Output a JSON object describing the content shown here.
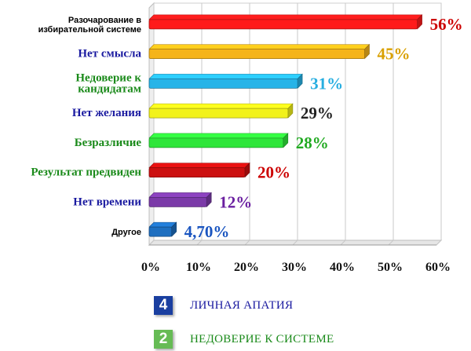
{
  "chart_data": {
    "type": "bar",
    "orientation": "horizontal",
    "categories": [
      "Разочарование в избирательной системе",
      "Нет смысла",
      "Недоверие к кандидатам",
      "Нет желания",
      "Безразличие",
      "Результат предвиден",
      "Нет времени",
      "Другое"
    ],
    "category_lines": [
      [
        "Разочарование в",
        "избирательной системе"
      ],
      [
        "Нет смысла"
      ],
      [
        "Недоверие к",
        "кандидатам"
      ],
      [
        "Нет желания"
      ],
      [
        "Безразличие"
      ],
      [
        "Результат предвиден"
      ],
      [
        "Нет времени"
      ],
      [
        "Другое"
      ]
    ],
    "values": [
      56,
      45,
      31,
      29,
      28,
      20,
      12,
      4.7
    ],
    "value_labels": [
      "56%",
      "45%",
      "31%",
      "29%",
      "28%",
      "20%",
      "12%",
      "4,70%"
    ],
    "bar_colors": [
      "#ff1a1a",
      "#f5b41a",
      "#27b4e8",
      "#f2f21a",
      "#2ee63a",
      "#cc1010",
      "#7b3aa8",
      "#1e6fc0"
    ],
    "label_colors": [
      "#cc0000",
      "#d9a000",
      "#27aee0",
      "#222222",
      "#22aa22",
      "#cc0000",
      "#6a1fa0",
      "#1a55c0"
    ],
    "category_label_colors": [
      "#000000",
      "#1a1aa0",
      "#1a8a1a",
      "#1a1aa0",
      "#1a8a1a",
      "#1a8a1a",
      "#1a1aa0",
      "#000000"
    ],
    "xlim": [
      0,
      60
    ],
    "xticks": [
      0,
      10,
      20,
      30,
      40,
      50,
      60
    ],
    "xtick_labels": [
      "0%",
      "10%",
      "20%",
      "30%",
      "40%",
      "50%",
      "60%"
    ],
    "grid": true
  },
  "legend": [
    {
      "number": "4",
      "text": "ЛИЧНАЯ АПАТИЯ",
      "box_color": "#1a3fa0",
      "text_color": "#1a1aa0"
    },
    {
      "number": "2",
      "text": "НЕДОВЕРИЕ К СИСТЕМЕ",
      "box_color": "#66bb55",
      "text_color": "#1a8a1a"
    }
  ]
}
